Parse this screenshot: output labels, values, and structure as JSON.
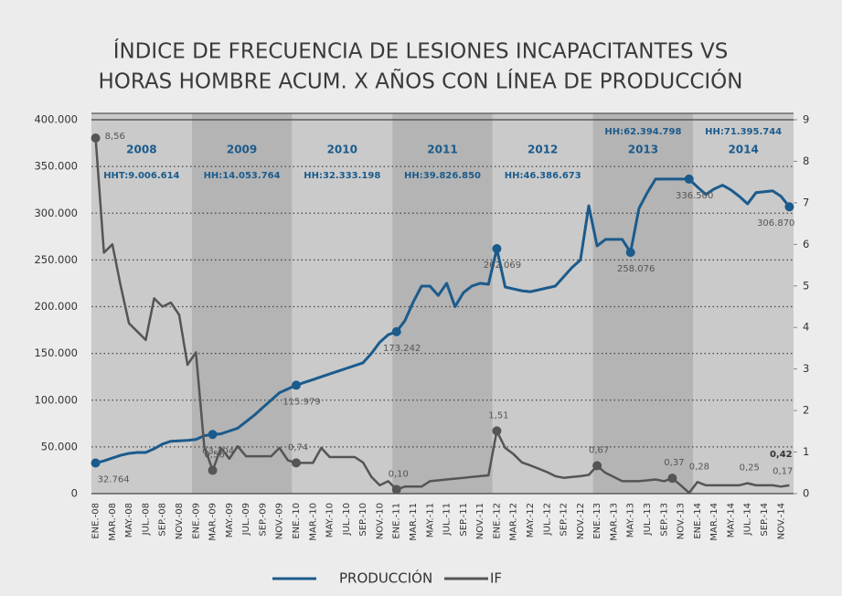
{
  "chart_data": {
    "type": "line",
    "title": [
      "ÍNDICE DE FRECUENCIA DE LESIONES INCAPACITANTES VS",
      "HORAS HOMBRE ACUM. X AÑOS CON LÍNEA DE PRODUCCIÓN"
    ],
    "categories": [
      "ENE.-08",
      null,
      "MAR.-08",
      null,
      "MAY.-08",
      null,
      "JUL.-08",
      null,
      "SEP.-08",
      null,
      "NOV.-08",
      null,
      "ENE.-09",
      null,
      "MAR.-09",
      null,
      "MAY.-09",
      null,
      "JUL.-09",
      null,
      "SEP.-09",
      null,
      "NOV.-09",
      null,
      "ENE.-10",
      null,
      "MAR.-10",
      null,
      "MAY.-10",
      null,
      "JUL.-10",
      null,
      "SEP.-10",
      null,
      "NOV.-10",
      null,
      "ENE.-11",
      null,
      "MAR.-11",
      null,
      "MAY.-11",
      null,
      "JUL.-11",
      null,
      "SEP.-11",
      null,
      "NOV.-11",
      null,
      "ENE.-12",
      null,
      "MAR.-12",
      null,
      "MAY.-12",
      null,
      "JUL.-12",
      null,
      "SEP.-12",
      null,
      "NOV.-12",
      null,
      "ENE.-13",
      null,
      "MAR.-13",
      null,
      "MAY.-13",
      null,
      "JUL.-13",
      null,
      "SEP.-13",
      null,
      "NOV.-13",
      null,
      "ENE.-14",
      null,
      "MAR.-14",
      null,
      "MAY.-14",
      null,
      "JUL.-14",
      null,
      "SEP.-14",
      null,
      "NOV.-14",
      null
    ],
    "bands": [
      {
        "year": "2008",
        "hh": "HHT:9.006.614"
      },
      {
        "year": "2009",
        "hh": "HH:14.053.764"
      },
      {
        "year": "2010",
        "hh": "HH:32.333.198"
      },
      {
        "year": "2011",
        "hh": "HH:39.826.850"
      },
      {
        "year": "2012",
        "hh": "HH:46.386.673"
      },
      {
        "year": "2013",
        "hh": "HH:62.394.798"
      },
      {
        "year": "2014",
        "hh": "HH:71.395.744"
      }
    ],
    "series": [
      {
        "name": "PRODUCCIÓN",
        "color": "#1b5b8c",
        "axis": "y",
        "values": [
          32764,
          35000,
          38000,
          41000,
          43000,
          44000,
          44000,
          48000,
          53000,
          56000,
          56500,
          57000,
          58000,
          62000,
          63304,
          64000,
          67000,
          70000,
          77000,
          84000,
          92000,
          100000,
          108000,
          112000,
          115979,
          119000,
          122000,
          125000,
          128000,
          131000,
          134000,
          137000,
          140000,
          150000,
          162000,
          170000,
          173242,
          185000,
          205000,
          222000,
          222000,
          212000,
          225000,
          200000,
          215000,
          222000,
          225000,
          224000,
          262069,
          221000,
          219000,
          217000,
          216000,
          218000,
          220000,
          222000,
          232000,
          242000,
          250000,
          308000,
          265000,
          272000,
          272000,
          272000,
          258076,
          305000,
          322000,
          336500,
          336500,
          336500,
          336500,
          336500,
          328000,
          320000,
          326000,
          330000,
          325000,
          318000,
          310000,
          322000,
          323000,
          324000,
          318000,
          306870
        ],
        "value_labels": [
          "32.764",
          null,
          null,
          null,
          null,
          null,
          null,
          null,
          null,
          null,
          null,
          null,
          null,
          null,
          "63.304",
          null,
          null,
          null,
          null,
          null,
          null,
          null,
          null,
          null,
          "115.979",
          null,
          null,
          null,
          null,
          null,
          null,
          null,
          null,
          null,
          null,
          null,
          "173.242",
          null,
          null,
          null,
          null,
          null,
          null,
          null,
          null,
          null,
          null,
          null,
          "262.069",
          null,
          null,
          null,
          null,
          null,
          null,
          null,
          null,
          null,
          null,
          null,
          null,
          null,
          null,
          null,
          "258.076",
          null,
          null,
          null,
          null,
          null,
          null,
          "336.500",
          null,
          null,
          null,
          null,
          null,
          null,
          null,
          null,
          null,
          null,
          null,
          "306.870"
        ]
      },
      {
        "name": "IF",
        "color": "#555555",
        "axis": "y2",
        "values": [
          8.56,
          5.8,
          6.0,
          5.0,
          4.1,
          3.9,
          3.7,
          4.7,
          4.5,
          4.6,
          4.3,
          3.1,
          3.4,
          1.14,
          0.56,
          1.1,
          0.84,
          1.14,
          0.9,
          0.9,
          0.9,
          0.9,
          1.1,
          0.8,
          0.74,
          0.74,
          0.74,
          1.1,
          0.88,
          0.88,
          0.88,
          0.88,
          0.75,
          0.4,
          0.2,
          0.3,
          0.1,
          0.17,
          0.17,
          0.17,
          0.3,
          0.32,
          0.34,
          0.36,
          0.38,
          0.4,
          0.42,
          0.44,
          1.51,
          1.1,
          0.95,
          0.75,
          0.68,
          0.6,
          0.52,
          0.42,
          0.38,
          0.4,
          0.42,
          0.45,
          0.67,
          0.5,
          0.4,
          0.3,
          0.3,
          0.3,
          0.32,
          0.34,
          0.3,
          0.37,
          0.2,
          0.02,
          0.28,
          0.2,
          0.2,
          0.2,
          0.2,
          0.2,
          0.25,
          0.2,
          0.2,
          0.2,
          0.17,
          0.2
        ],
        "value_labels": [
          "8,56",
          null,
          null,
          null,
          null,
          null,
          null,
          null,
          null,
          null,
          null,
          null,
          null,
          null,
          "0,56",
          null,
          null,
          null,
          null,
          null,
          null,
          null,
          null,
          null,
          "0,74",
          null,
          null,
          null,
          null,
          null,
          null,
          null,
          null,
          null,
          null,
          null,
          "0,10",
          null,
          null,
          null,
          null,
          null,
          null,
          null,
          null,
          null,
          null,
          null,
          "1,51",
          null,
          null,
          null,
          null,
          null,
          null,
          null,
          null,
          null,
          null,
          null,
          "0,67",
          null,
          null,
          null,
          null,
          null,
          null,
          null,
          null,
          "0,37",
          null,
          null,
          "0,28",
          null,
          null,
          null,
          null,
          null,
          "0,25",
          null,
          null,
          null,
          "0,17",
          null
        ]
      }
    ],
    "annotations": [
      "0,42"
    ],
    "ylim": [
      0,
      400000
    ],
    "yticks": [
      0,
      {
        "value": 50000,
        "label": "50.000"
      },
      {
        "value": 100000,
        "label": "100.000"
      },
      {
        "value": 150000,
        "label": "150.000"
      },
      {
        "value": 200000,
        "label": "200.000"
      },
      {
        "value": 250000,
        "label": "250.000"
      },
      {
        "value": 300000,
        "label": "300.000"
      },
      {
        "value": 350000,
        "label": "350.000"
      },
      {
        "value": 400000,
        "label": "400.000"
      }
    ],
    "y2lim": [
      0,
      9
    ],
    "y2ticks": [
      0,
      1,
      2,
      3,
      4,
      5,
      6,
      7,
      8,
      9
    ],
    "grid": true,
    "legend": "bottom"
  }
}
